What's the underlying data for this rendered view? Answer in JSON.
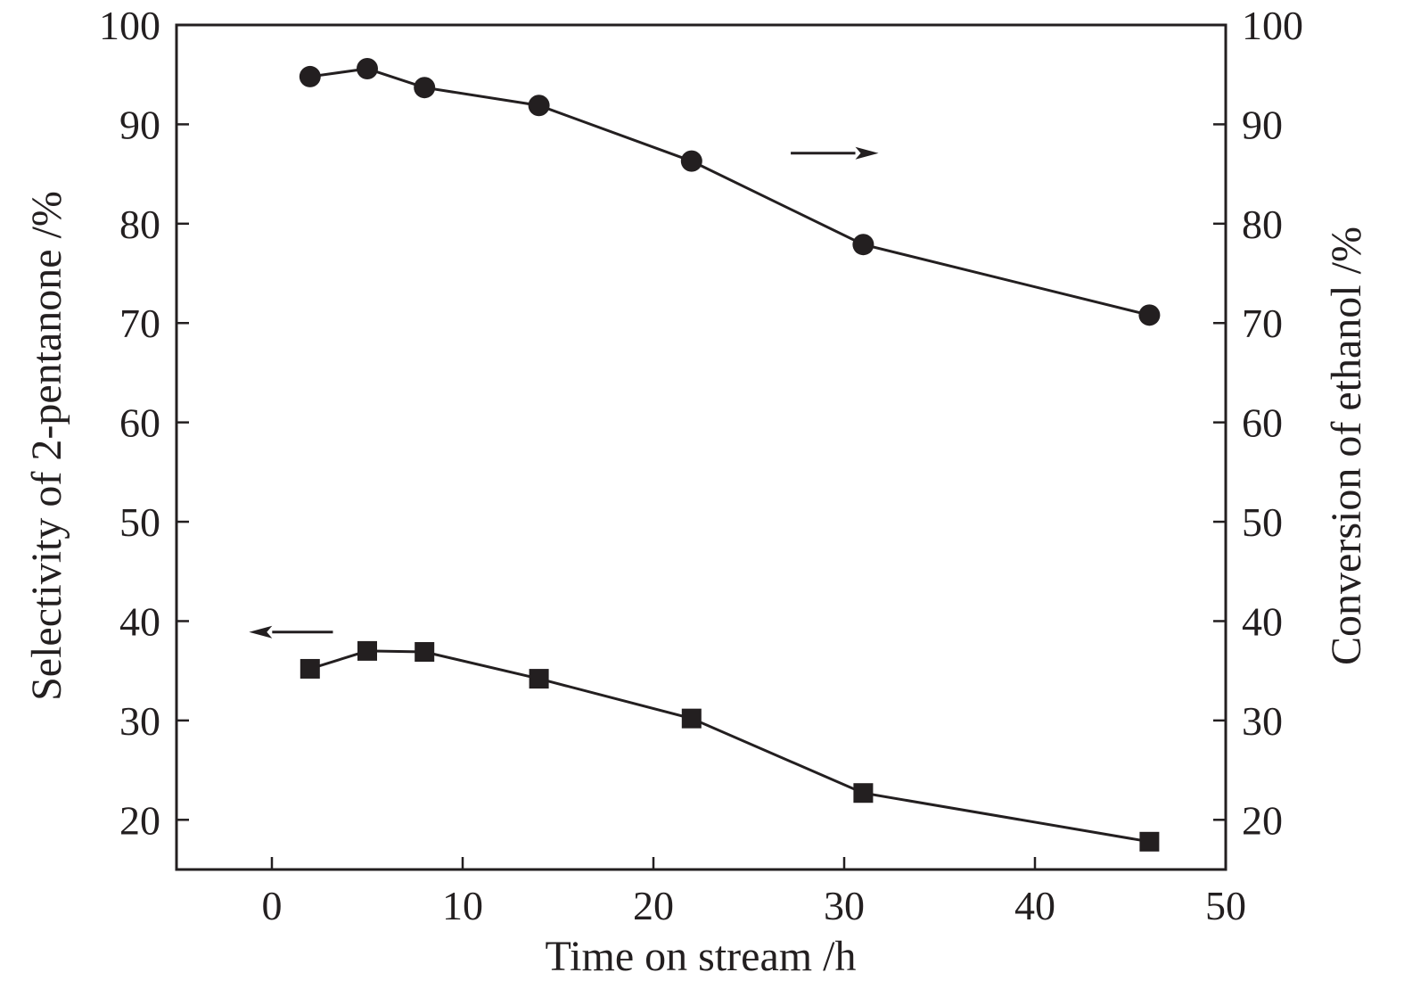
{
  "chart_data": {
    "type": "line",
    "xlabel": "Time on stream /h",
    "ylabel_left": "Selectivity of 2-pentanone /%",
    "ylabel_right": "Conversion of ethanol /%",
    "xlim": [
      -5,
      50
    ],
    "ylim": [
      15,
      100
    ],
    "x_ticks": [
      0,
      10,
      20,
      30,
      40,
      50
    ],
    "y_ticks": [
      20,
      30,
      40,
      50,
      60,
      70,
      80,
      90,
      100
    ],
    "grid": false,
    "series": [
      {
        "marker": "circle",
        "axis": "right",
        "x": [
          2,
          5,
          8,
          14,
          22,
          31,
          46
        ],
        "y": [
          94.8,
          95.6,
          93.7,
          91.9,
          86.3,
          77.9,
          70.8
        ]
      },
      {
        "marker": "square",
        "axis": "left",
        "x": [
          2,
          5,
          8,
          14,
          22,
          31,
          46
        ],
        "y": [
          35.2,
          37.0,
          36.9,
          34.2,
          30.2,
          22.7,
          17.8
        ]
      }
    ],
    "annotations": [
      {
        "type": "arrow",
        "direction": "right",
        "points_to": "right-axis",
        "series": 0,
        "x_from": 27.2,
        "x_to": 31.8,
        "y": 87.1
      },
      {
        "type": "arrow",
        "direction": "left",
        "points_to": "left-axis",
        "series": 1,
        "x_from": 3.2,
        "x_to": -1.2,
        "y": 38.9
      }
    ]
  }
}
